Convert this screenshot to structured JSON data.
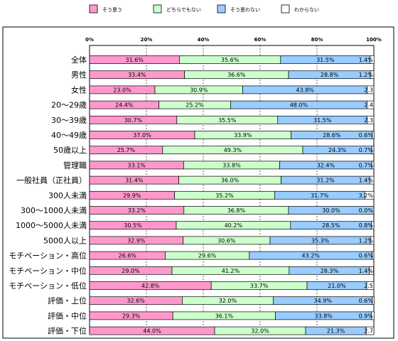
{
  "chart_data": {
    "type": "bar",
    "orientation": "horizontal",
    "stacked": "percent",
    "title": "",
    "xlabel": "",
    "ylabel": "",
    "xlim": [
      0,
      100
    ],
    "x_ticks": [
      "0%",
      "20%",
      "40%",
      "60%",
      "80%",
      "100%"
    ],
    "grid": "vertical dashed",
    "legend_position": "top",
    "categories": [
      "全体",
      "男性",
      "女性",
      "20～29歳",
      "30～39歳",
      "40～49歳",
      "50歳以上",
      "管理職",
      "一般社員（正社員）",
      "300人未満",
      "300～1000人未満",
      "1000～5000人未満",
      "5000人以上",
      "モチベーション・高位",
      "モチベーション・中位",
      "モチベーション・低位",
      "評価・上位",
      "評価・中位",
      "評価・下位"
    ],
    "series": [
      {
        "name": "そう思う",
        "color": "#ff99cc",
        "values": [
          31.6,
          33.4,
          23.0,
          24.4,
          30.7,
          37.0,
          25.7,
          33.1,
          31.4,
          29.9,
          33.2,
          30.5,
          32.9,
          26.6,
          29.0,
          42.8,
          32.6,
          29.3,
          44.0
        ],
        "labels": [
          "31.6%",
          "33.4%",
          "23.0%",
          "24.4%",
          "30.7%",
          "37.0%",
          "25.7%",
          "33.1%",
          "31.4%",
          "29.9%",
          "33.2%",
          "30.5%",
          "32.9%",
          "26.6%",
          "29.0%",
          "42.8%",
          "32.6%",
          "29.3%",
          "44.0%"
        ]
      },
      {
        "name": "どちらでもない",
        "color": "#ccffcc",
        "values": [
          35.6,
          36.6,
          30.9,
          25.2,
          35.5,
          33.9,
          49.3,
          33.8,
          36.0,
          35.2,
          36.8,
          40.2,
          30.6,
          29.6,
          41.2,
          33.7,
          32.0,
          36.1,
          32.0
        ],
        "labels": [
          "35.6%",
          "36.6%",
          "30.9%",
          "25.2%",
          "35.5%",
          "33.9%",
          "49.3%",
          "33.8%",
          "36.0%",
          "35.2%",
          "36.8%",
          "40.2%",
          "30.6%",
          "29.6%",
          "41.2%",
          "33.7%",
          "32.0%",
          "36.1%",
          "32.0%"
        ]
      },
      {
        "name": "そう思わない",
        "color": "#99ccff",
        "values": [
          31.5,
          28.8,
          43.8,
          48.0,
          31.5,
          28.6,
          24.3,
          32.4,
          31.2,
          31.7,
          30.0,
          28.5,
          35.3,
          43.2,
          28.3,
          21.0,
          34.9,
          33.8,
          21.3
        ],
        "labels": [
          "31.5%",
          "28.8%",
          "43.8%",
          "48.0%",
          "31.5%",
          "28.6%",
          "24.3%",
          "32.4%",
          "31.2%",
          "31.7%",
          "30.0%",
          "28.5%",
          "35.3%",
          "43.2%",
          "28.3%",
          "21.0%",
          "34.9%",
          "33.8%",
          "21.3%"
        ]
      },
      {
        "name": "わからない",
        "color": "#ffffff",
        "values": [
          1.4,
          1.2,
          2.3,
          2.4,
          2.3,
          0.6,
          0.7,
          0.7,
          1.4,
          3.2,
          0.0,
          0.8,
          1.2,
          0.6,
          1.4,
          2.5,
          0.6,
          0.9,
          2.7
        ],
        "labels": [
          "1.4%",
          "1.2%",
          "2.3",
          "2.4",
          "2.3",
          "0.6%",
          "0.7%",
          "0.7%",
          "1.4%",
          "3.2%",
          "0.0%",
          "0.8%",
          "1.2%",
          "0.6%",
          "1.4%",
          "2.5",
          "0.6%",
          "0.9%",
          "2.7"
        ]
      }
    ]
  }
}
